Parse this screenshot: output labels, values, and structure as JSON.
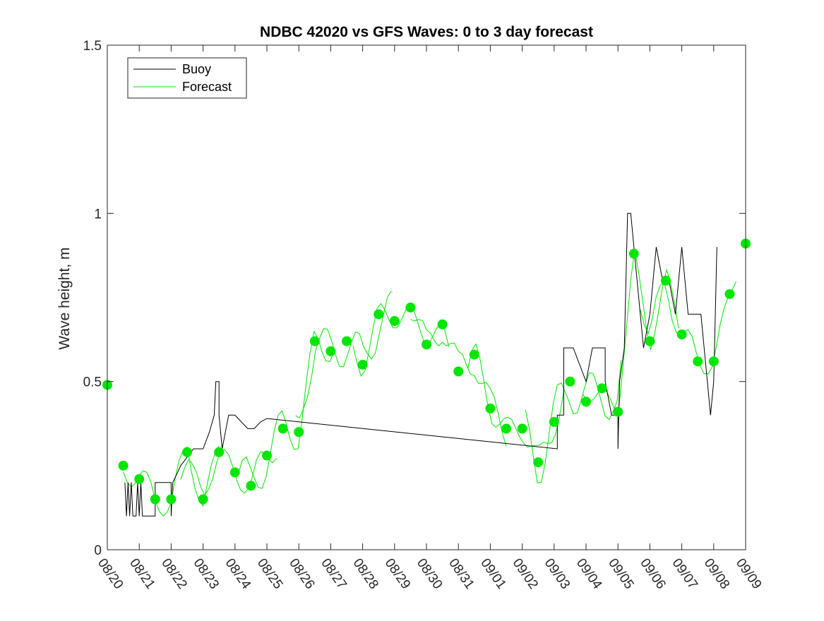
{
  "chart_data": {
    "type": "line",
    "title": "NDBC 42020 vs GFS Waves: 0 to 3 day forecast",
    "xlabel": "",
    "ylabel": "Wave height, m",
    "x_unit": "days since 08/20",
    "xlim": [
      0,
      20
    ],
    "ylim": [
      0,
      1.5
    ],
    "y_ticks": [
      0,
      0.5,
      1,
      1.5
    ],
    "y_tick_labels": [
      "0",
      "0.5",
      "1",
      "1.5"
    ],
    "x_ticks": [
      0,
      1,
      2,
      3,
      4,
      5,
      6,
      7,
      8,
      9,
      10,
      11,
      12,
      13,
      14,
      15,
      16,
      17,
      18,
      19,
      20
    ],
    "x_tick_labels": [
      "08/20",
      "08/21",
      "08/22",
      "08/23",
      "08/24",
      "08/25",
      "08/26",
      "08/27",
      "08/28",
      "08/29",
      "08/30",
      "08/31",
      "09/01",
      "09/02",
      "09/03",
      "09/04",
      "09/05",
      "09/06",
      "09/07",
      "09/08",
      "09/09"
    ],
    "grid": false,
    "legend": {
      "placement": "top-left",
      "entries": [
        {
          "name": "Buoy",
          "color": "#000000"
        },
        {
          "name": "Forecast",
          "color": "#00e600"
        }
      ]
    },
    "series": [
      {
        "name": "Buoy",
        "color": "#000000",
        "points": [
          [
            0.55,
            0.2
          ],
          [
            0.6,
            0.1
          ],
          [
            0.65,
            0.2
          ],
          [
            0.7,
            0.1
          ],
          [
            0.75,
            0.2
          ],
          [
            0.8,
            0.1
          ],
          [
            0.9,
            0.1
          ],
          [
            0.95,
            0.2
          ],
          [
            1.0,
            0.1
          ],
          [
            1.05,
            0.2
          ],
          [
            1.1,
            0.1
          ],
          [
            1.2,
            0.1
          ],
          [
            1.4,
            0.1
          ],
          [
            1.5,
            0.1
          ],
          [
            1.5,
            0.2
          ],
          [
            1.7,
            0.2
          ],
          [
            2.0,
            0.2
          ],
          [
            2.0,
            0.1
          ],
          [
            2.05,
            0.2
          ],
          [
            2.3,
            0.25
          ],
          [
            2.7,
            0.3
          ],
          [
            3.0,
            0.3
          ],
          [
            3.2,
            0.35
          ],
          [
            3.35,
            0.4
          ],
          [
            3.4,
            0.5
          ],
          [
            3.5,
            0.5
          ],
          [
            3.5,
            0.4
          ],
          [
            3.6,
            0.3
          ],
          [
            3.7,
            0.35
          ],
          [
            3.8,
            0.4
          ],
          [
            4.0,
            0.4
          ],
          [
            4.2,
            0.38
          ],
          [
            4.4,
            0.36
          ],
          [
            4.6,
            0.36
          ],
          [
            4.8,
            0.38
          ],
          [
            5.0,
            0.39
          ],
          [
            14.1,
            0.3
          ],
          [
            14.1,
            0.4
          ],
          [
            14.3,
            0.4
          ],
          [
            14.3,
            0.6
          ],
          [
            14.6,
            0.6
          ],
          [
            15.0,
            0.5
          ],
          [
            15.2,
            0.6
          ],
          [
            15.6,
            0.6
          ],
          [
            15.6,
            0.5
          ],
          [
            15.8,
            0.4
          ],
          [
            16.0,
            0.4
          ],
          [
            16.0,
            0.3
          ],
          [
            16.05,
            0.5
          ],
          [
            16.2,
            0.6
          ],
          [
            16.3,
            1.0
          ],
          [
            16.4,
            1.0
          ],
          [
            16.5,
            0.9
          ],
          [
            16.6,
            0.8
          ],
          [
            16.7,
            0.7
          ],
          [
            16.8,
            0.6
          ],
          [
            17.0,
            0.7
          ],
          [
            17.2,
            0.9
          ],
          [
            17.4,
            0.8
          ],
          [
            17.6,
            0.8
          ],
          [
            17.8,
            0.7
          ],
          [
            18.0,
            0.9
          ],
          [
            18.2,
            0.7
          ],
          [
            18.6,
            0.7
          ],
          [
            18.8,
            0.5
          ],
          [
            18.9,
            0.4
          ],
          [
            19.0,
            0.5
          ],
          [
            19.1,
            0.9
          ]
        ]
      },
      {
        "name": "Forecast",
        "color": "#00e600",
        "markers": [
          [
            0,
            0.49
          ],
          [
            0.5,
            0.25
          ],
          [
            1.0,
            0.21
          ],
          [
            1.5,
            0.15
          ],
          [
            2.0,
            0.15
          ],
          [
            2.5,
            0.29
          ],
          [
            3.0,
            0.15
          ],
          [
            3.5,
            0.29
          ],
          [
            4.0,
            0.23
          ],
          [
            4.5,
            0.19
          ],
          [
            5.0,
            0.28
          ],
          [
            5.5,
            0.36
          ],
          [
            6.0,
            0.35
          ],
          [
            6.5,
            0.62
          ],
          [
            7.0,
            0.59
          ],
          [
            7.5,
            0.62
          ],
          [
            8.0,
            0.55
          ],
          [
            8.5,
            0.7
          ],
          [
            9.0,
            0.68
          ],
          [
            9.5,
            0.72
          ],
          [
            10.0,
            0.61
          ],
          [
            10.5,
            0.67
          ],
          [
            11.0,
            0.53
          ],
          [
            11.5,
            0.58
          ],
          [
            12.0,
            0.42
          ],
          [
            12.5,
            0.36
          ],
          [
            13.0,
            0.36
          ],
          [
            13.5,
            0.26
          ],
          [
            14.0,
            0.38
          ],
          [
            14.5,
            0.5
          ],
          [
            15.0,
            0.44
          ],
          [
            15.5,
            0.48
          ],
          [
            16.0,
            0.41
          ],
          [
            16.5,
            0.88
          ],
          [
            17.0,
            0.62
          ],
          [
            17.5,
            0.8
          ],
          [
            18.0,
            0.64
          ],
          [
            18.5,
            0.56
          ],
          [
            19.0,
            0.56
          ],
          [
            19.5,
            0.76
          ],
          [
            20.0,
            0.91
          ]
        ]
      }
    ]
  }
}
